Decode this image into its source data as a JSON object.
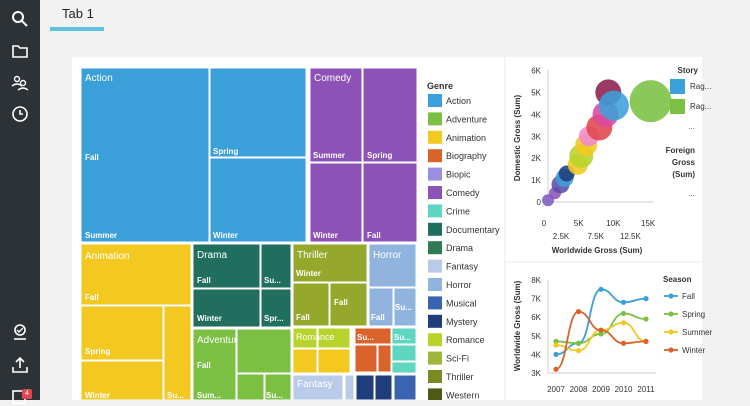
{
  "tabs": [
    {
      "label": "Tab 1"
    }
  ],
  "sidebar": {
    "badge_count": "4"
  },
  "treemap": {
    "cells": [
      {
        "x": 81,
        "y": 68,
        "w": 128,
        "h": 174,
        "color": "#3b9fd9",
        "labels": [
          {
            "t": "Action",
            "x": 85,
            "y": 81,
            "s": 10
          },
          {
            "t": "Fall",
            "x": 85,
            "y": 160
          },
          {
            "t": "Summer",
            "x": 85,
            "y": 238
          }
        ]
      },
      {
        "x": 210,
        "y": 68,
        "w": 96,
        "h": 89,
        "color": "#3b9fd9",
        "labels": [
          {
            "t": "Spring",
            "x": 213,
            "y": 154
          }
        ]
      },
      {
        "x": 210,
        "y": 158,
        "w": 96,
        "h": 84,
        "color": "#3b9fd9",
        "labels": [
          {
            "t": "Winter",
            "x": 213,
            "y": 238
          }
        ]
      },
      {
        "x": 310,
        "y": 68,
        "w": 52,
        "h": 94,
        "color": "#8c52b8",
        "labels": [
          {
            "t": "Comedy",
            "x": 314,
            "y": 81,
            "s": 10
          },
          {
            "t": "Summer",
            "x": 313,
            "y": 158
          }
        ]
      },
      {
        "x": 363,
        "y": 68,
        "w": 54,
        "h": 94,
        "color": "#8c52b8",
        "labels": [
          {
            "t": "Spring",
            "x": 367,
            "y": 158
          }
        ]
      },
      {
        "x": 310,
        "y": 163,
        "w": 52,
        "h": 79,
        "color": "#8c52b8",
        "labels": [
          {
            "t": "Winter",
            "x": 313,
            "y": 238
          }
        ]
      },
      {
        "x": 363,
        "y": 163,
        "w": 54,
        "h": 79,
        "color": "#8c52b8",
        "labels": [
          {
            "t": "Fall",
            "x": 367,
            "y": 238
          }
        ]
      },
      {
        "x": 81,
        "y": 244,
        "w": 110,
        "h": 61,
        "color": "#f2c821",
        "labels": [
          {
            "t": "Animation",
            "x": 85,
            "y": 259,
            "s": 10
          },
          {
            "t": "Fall",
            "x": 85,
            "y": 300
          }
        ]
      },
      {
        "x": 81,
        "y": 306,
        "w": 82,
        "h": 54,
        "color": "#f2c821",
        "labels": [
          {
            "t": "Spring",
            "x": 85,
            "y": 354
          }
        ]
      },
      {
        "x": 81,
        "y": 361,
        "w": 82,
        "h": 39,
        "color": "#f2c821",
        "labels": [
          {
            "t": "Winter",
            "x": 85,
            "y": 398
          }
        ]
      },
      {
        "x": 164,
        "y": 306,
        "w": 27,
        "h": 94,
        "color": "#f2c821",
        "labels": [
          {
            "t": "Su...",
            "x": 167,
            "y": 398
          }
        ]
      },
      {
        "x": 193,
        "y": 244,
        "w": 67,
        "h": 44,
        "color": "#1f6e5e",
        "labels": [
          {
            "t": "Drama",
            "x": 197,
            "y": 258,
            "s": 10
          },
          {
            "t": "Fall",
            "x": 197,
            "y": 283
          }
        ]
      },
      {
        "x": 261,
        "y": 244,
        "w": 30,
        "h": 44,
        "color": "#1f6e5e",
        "labels": [
          {
            "t": "Su...",
            "x": 264,
            "y": 283
          }
        ]
      },
      {
        "x": 193,
        "y": 289,
        "w": 67,
        "h": 38,
        "color": "#1f6e5e",
        "labels": [
          {
            "t": "Winter",
            "x": 197,
            "y": 321
          }
        ]
      },
      {
        "x": 261,
        "y": 289,
        "w": 30,
        "h": 38,
        "color": "#1f6e5e",
        "labels": [
          {
            "t": "Spr...",
            "x": 264,
            "y": 321
          }
        ]
      },
      {
        "x": 293,
        "y": 244,
        "w": 74,
        "h": 38,
        "color": "#96a82c",
        "labels": [
          {
            "t": "Thriller",
            "x": 297,
            "y": 258,
            "s": 10
          },
          {
            "t": "Winter",
            "x": 296,
            "y": 276
          }
        ]
      },
      {
        "x": 293,
        "y": 283,
        "w": 36,
        "h": 43,
        "color": "#96a82c",
        "labels": [
          {
            "t": "Fall",
            "x": 296,
            "y": 320
          }
        ]
      },
      {
        "x": 330,
        "y": 283,
        "w": 37,
        "h": 43,
        "color": "#96a82c",
        "labels": [
          {
            "t": "Fall",
            "x": 334,
            "y": 305
          }
        ]
      },
      {
        "x": 369,
        "y": 244,
        "w": 47,
        "h": 43,
        "color": "#90b4de",
        "labels": [
          {
            "t": "Horror",
            "x": 373,
            "y": 258,
            "s": 10
          }
        ]
      },
      {
        "x": 369,
        "y": 288,
        "w": 24,
        "h": 38,
        "color": "#90b4de",
        "labels": [
          {
            "t": "Fall",
            "x": 371,
            "y": 320
          }
        ]
      },
      {
        "x": 394,
        "y": 288,
        "w": 22,
        "h": 38,
        "color": "#90b4de",
        "labels": [
          {
            "t": "Su...",
            "x": 395,
            "y": 310
          }
        ]
      },
      {
        "x": 193,
        "y": 329,
        "w": 43,
        "h": 71,
        "color": "#7bc043",
        "labels": [
          {
            "t": "Adventure",
            "x": 197,
            "y": 343,
            "s": 10
          },
          {
            "t": "Fall",
            "x": 197,
            "y": 368
          },
          {
            "t": "Sum...",
            "x": 197,
            "y": 398
          }
        ]
      },
      {
        "x": 237,
        "y": 329,
        "w": 54,
        "h": 44,
        "color": "#7bc043",
        "labels": []
      },
      {
        "x": 237,
        "y": 374,
        "w": 27,
        "h": 26,
        "color": "#7bc043",
        "labels": []
      },
      {
        "x": 265,
        "y": 374,
        "w": 26,
        "h": 26,
        "color": "#7bc043",
        "labels": [
          {
            "t": "Su...",
            "x": 266,
            "y": 398
          }
        ]
      },
      {
        "x": 293,
        "y": 328,
        "w": 24,
        "h": 20,
        "color": "#b8d32b",
        "labels": []
      },
      {
        "x": 318,
        "y": 328,
        "w": 32,
        "h": 20,
        "color": "#b8d32b",
        "labels": []
      },
      {
        "x": 293,
        "y": 349,
        "w": 24,
        "h": 24,
        "color": "#f2c821",
        "labels": [
          {
            "t": "Romance",
            "x": 296,
            "y": 340,
            "s": 9
          }
        ]
      },
      {
        "x": 318,
        "y": 349,
        "w": 32,
        "h": 24,
        "color": "#f2c821",
        "labels": []
      },
      {
        "x": 355,
        "y": 328,
        "w": 36,
        "h": 16,
        "color": "#d9632b",
        "labels": [
          {
            "t": "Su...",
            "x": 357,
            "y": 340
          }
        ]
      },
      {
        "x": 355,
        "y": 345,
        "w": 22,
        "h": 27,
        "color": "#d9632b",
        "labels": []
      },
      {
        "x": 378,
        "y": 345,
        "w": 13,
        "h": 27,
        "color": "#d9632b",
        "labels": []
      },
      {
        "x": 392,
        "y": 328,
        "w": 24,
        "h": 16,
        "color": "#5fd6c1",
        "labels": [
          {
            "t": "Su...",
            "x": 394,
            "y": 340
          }
        ]
      },
      {
        "x": 392,
        "y": 345,
        "w": 24,
        "h": 16,
        "color": "#5fd6c1",
        "labels": []
      },
      {
        "x": 392,
        "y": 362,
        "w": 24,
        "h": 11,
        "color": "#5fd6c1",
        "labels": []
      },
      {
        "x": 293,
        "y": 375,
        "w": 50,
        "h": 25,
        "color": "#b9cbe9",
        "labels": [
          {
            "t": "Fantasy",
            "x": 297,
            "y": 387,
            "s": 10
          }
        ]
      },
      {
        "x": 345,
        "y": 375,
        "w": 9,
        "h": 25,
        "color": "#b9cbe9",
        "labels": []
      },
      {
        "x": 356,
        "y": 375,
        "w": 18,
        "h": 25,
        "color": "#1f3d7a",
        "labels": []
      },
      {
        "x": 375,
        "y": 375,
        "w": 17,
        "h": 25,
        "color": "#1f3d7a",
        "labels": []
      },
      {
        "x": 394,
        "y": 375,
        "w": 22,
        "h": 25,
        "color": "#3a64b0",
        "labels": []
      }
    ]
  },
  "legend": {
    "title": "Genre",
    "items": [
      {
        "label": "Action",
        "color": "#3b9fd9"
      },
      {
        "label": "Adventure",
        "color": "#7bc043"
      },
      {
        "label": "Animation",
        "color": "#f2c821"
      },
      {
        "label": "Biography",
        "color": "#d9632b"
      },
      {
        "label": "Biopic",
        "color": "#9b8fe0"
      },
      {
        "label": "Comedy",
        "color": "#8c52b8"
      },
      {
        "label": "Crime",
        "color": "#5fd6c1"
      },
      {
        "label": "Documentary",
        "color": "#1f6e5e"
      },
      {
        "label": "Drama",
        "color": "#2f7a52"
      },
      {
        "label": "Fantasy",
        "color": "#b9cbe9"
      },
      {
        "label": "Horror",
        "color": "#90b4de"
      },
      {
        "label": "Musical",
        "color": "#3a64b0"
      },
      {
        "label": "Mystery",
        "color": "#1f3d7a"
      },
      {
        "label": "Romance",
        "color": "#b8d32b"
      },
      {
        "label": "Sci-Fi",
        "color": "#9fb83c"
      },
      {
        "label": "Thriller",
        "color": "#7a8a22"
      },
      {
        "label": "Western",
        "color": "#4e5a16"
      }
    ]
  },
  "scatter": {
    "xlabel": "Worldwide Gross (Sum)",
    "ylabel": "Domestic Gross (Sum)",
    "xticks_top": [
      "0",
      "5K",
      "10K",
      "15K"
    ],
    "xticks_bottom": [
      "2.5K",
      "7.5K",
      "12.5K"
    ],
    "yticks": [
      "0",
      "1K",
      "2K",
      "3K",
      "4K",
      "5K",
      "6K"
    ],
    "bubbles": [
      {
        "x": 0,
        "y": 80,
        "r": 6,
        "color": "#7d5bc0"
      },
      {
        "x": 1000,
        "y": 400,
        "r": 6,
        "color": "#8c52b8"
      },
      {
        "x": 1800,
        "y": 800,
        "r": 9,
        "color": "#5a4ea8"
      },
      {
        "x": 2400,
        "y": 1100,
        "r": 9,
        "color": "#3b9fd9"
      },
      {
        "x": 2700,
        "y": 1300,
        "r": 8,
        "color": "#1f3d7a"
      },
      {
        "x": 4300,
        "y": 1700,
        "r": 10,
        "color": "#f2c821"
      },
      {
        "x": 4800,
        "y": 2100,
        "r": 12,
        "color": "#b8d32b"
      },
      {
        "x": 5500,
        "y": 2600,
        "r": 11,
        "color": "#f2c821"
      },
      {
        "x": 5900,
        "y": 3000,
        "r": 10,
        "color": "#f08ad0"
      },
      {
        "x": 7400,
        "y": 3400,
        "r": 13,
        "color": "#e0474c"
      },
      {
        "x": 8300,
        "y": 4000,
        "r": 13,
        "color": "#d94aa1"
      },
      {
        "x": 8700,
        "y": 5000,
        "r": 13,
        "color": "#8c1f4f"
      },
      {
        "x": 9500,
        "y": 4400,
        "r": 15,
        "color": "#3b9fd9"
      },
      {
        "x": 14800,
        "y": 4600,
        "r": 21,
        "color": "#7bc043"
      }
    ],
    "legend_title": "Story",
    "legend_items": [
      {
        "label": "Rag...",
        "color": "#3b9fd9"
      },
      {
        "label": "Rag...",
        "color": "#7bc043"
      }
    ],
    "legend_more": "...",
    "size_title": "Foreign Gross (Sum)",
    "size_more": "..."
  },
  "linechart": {
    "ylabel": "Worldwide Gross (Sum)",
    "x": [
      "2007",
      "2008",
      "2009",
      "2010",
      "2011"
    ],
    "yticks": [
      "3K",
      "4K",
      "5K",
      "6K",
      "7K",
      "8K"
    ],
    "legend_title": "Season",
    "series": [
      {
        "name": "Fall",
        "color": "#3b9fd9",
        "values": [
          4000,
          4600,
          7500,
          6800,
          7000
        ]
      },
      {
        "name": "Spring",
        "color": "#7bc043",
        "values": [
          4700,
          4600,
          5100,
          6200,
          5900
        ]
      },
      {
        "name": "Summer",
        "color": "#f2c821",
        "values": [
          4500,
          4200,
          5300,
          5700,
          4700
        ]
      },
      {
        "name": "Winter",
        "color": "#d9632b",
        "values": [
          3200,
          6300,
          5300,
          4600,
          4700
        ]
      }
    ]
  }
}
